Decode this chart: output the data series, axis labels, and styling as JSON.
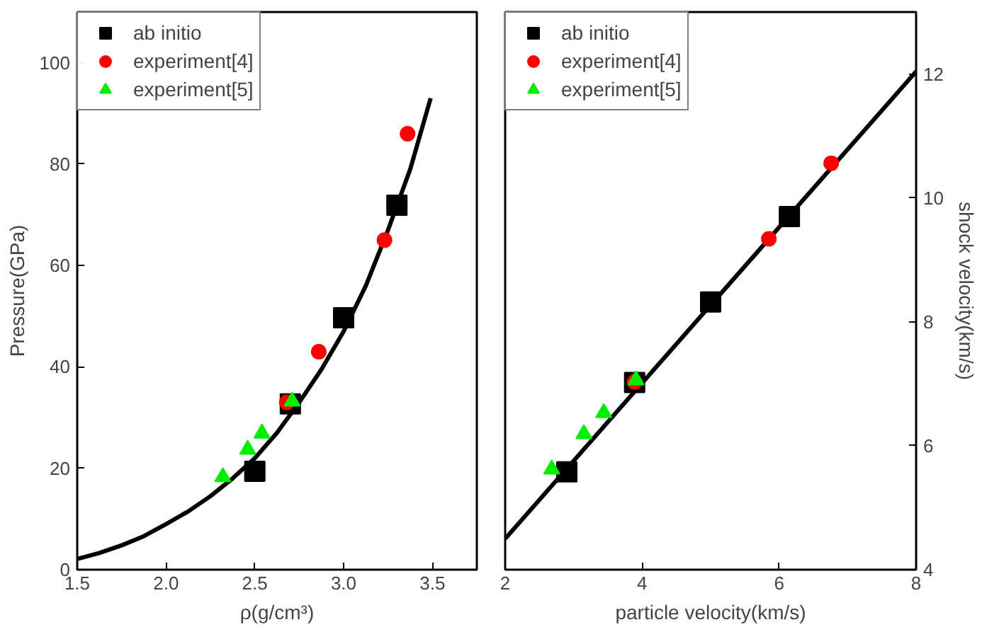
{
  "chart_data": [
    {
      "type": "scatter",
      "xlabel": "ρ(g/cm³)",
      "ylabel": "Pressure(GPa)",
      "xlim": [
        1.5,
        3.75
      ],
      "ylim": [
        0,
        110
      ],
      "xticks": [
        1.5,
        {
          "value": 2,
          "label": "2.0"
        },
        2.5,
        {
          "value": 3,
          "label": "3.0"
        },
        3.5
      ],
      "yticks": [
        0,
        20,
        40,
        60,
        80,
        100
      ],
      "grid": false,
      "legend": "top left",
      "series": [
        {
          "type": "line",
          "color": "#000000",
          "marker": "none",
          "line_style": "solid",
          "x": [
            1.5,
            1.625,
            1.75,
            1.875,
            2.0,
            2.125,
            2.25,
            2.375,
            2.5,
            2.625,
            2.75,
            2.875,
            3.0,
            3.125,
            3.25,
            3.375,
            3.49
          ],
          "values": [
            2.1,
            3.3,
            4.8,
            6.6,
            9,
            11.5,
            14.5,
            18,
            22,
            27,
            33,
            39.5,
            47,
            56,
            67,
            79,
            93
          ]
        },
        {
          "name": "ab initio",
          "color": "#000000",
          "marker": "square",
          "x": [
            2.5,
            2.7,
            3.0,
            3.3
          ],
          "values": [
            19.4,
            32.7,
            49.7,
            71.9
          ]
        },
        {
          "name": "experiment[4]",
          "color": "#ff0000",
          "marker": "circle",
          "x": [
            2.68,
            2.86,
            3.23,
            3.36
          ],
          "values": [
            33,
            43,
            65,
            86
          ]
        },
        {
          "name": "experiment[5]",
          "color": "#00ee00",
          "marker": "triangle",
          "x": [
            2.32,
            2.46,
            2.54,
            2.71
          ],
          "values": [
            18.3,
            23.7,
            26.9,
            33.2
          ]
        }
      ]
    },
    {
      "type": "scatter",
      "xlabel": "particle velocity(km/s)",
      "ylabel": "shock velocity(km/s)",
      "xlim": [
        2,
        8
      ],
      "ylim": [
        4,
        13
      ],
      "xticks": [
        2,
        4,
        6,
        8
      ],
      "yticks": [
        4,
        6,
        8,
        10,
        12
      ],
      "grid": false,
      "legend": "top left",
      "series": [
        {
          "type": "line",
          "color": "#000000",
          "marker": "none",
          "line_style": "solid",
          "x": [
            2,
            8
          ],
          "values": [
            4.5,
            12.04
          ]
        },
        {
          "name": "ab initio",
          "color": "#000000",
          "marker": "square",
          "x": [
            2.9,
            3.89,
            5.0,
            6.15
          ],
          "values": [
            5.58,
            7.02,
            8.32,
            9.7
          ]
        },
        {
          "name": "experiment[4]",
          "color": "#ff0000",
          "marker": "circle",
          "x": [
            3.89,
            5.85,
            6.76
          ],
          "values": [
            7.03,
            9.34,
            10.56
          ]
        },
        {
          "name": "experiment[5]",
          "color": "#00ee00",
          "marker": "triangle",
          "x": [
            2.68,
            3.15,
            3.44,
            3.91
          ],
          "values": [
            5.62,
            6.19,
            6.53,
            7.06
          ]
        }
      ]
    }
  ]
}
